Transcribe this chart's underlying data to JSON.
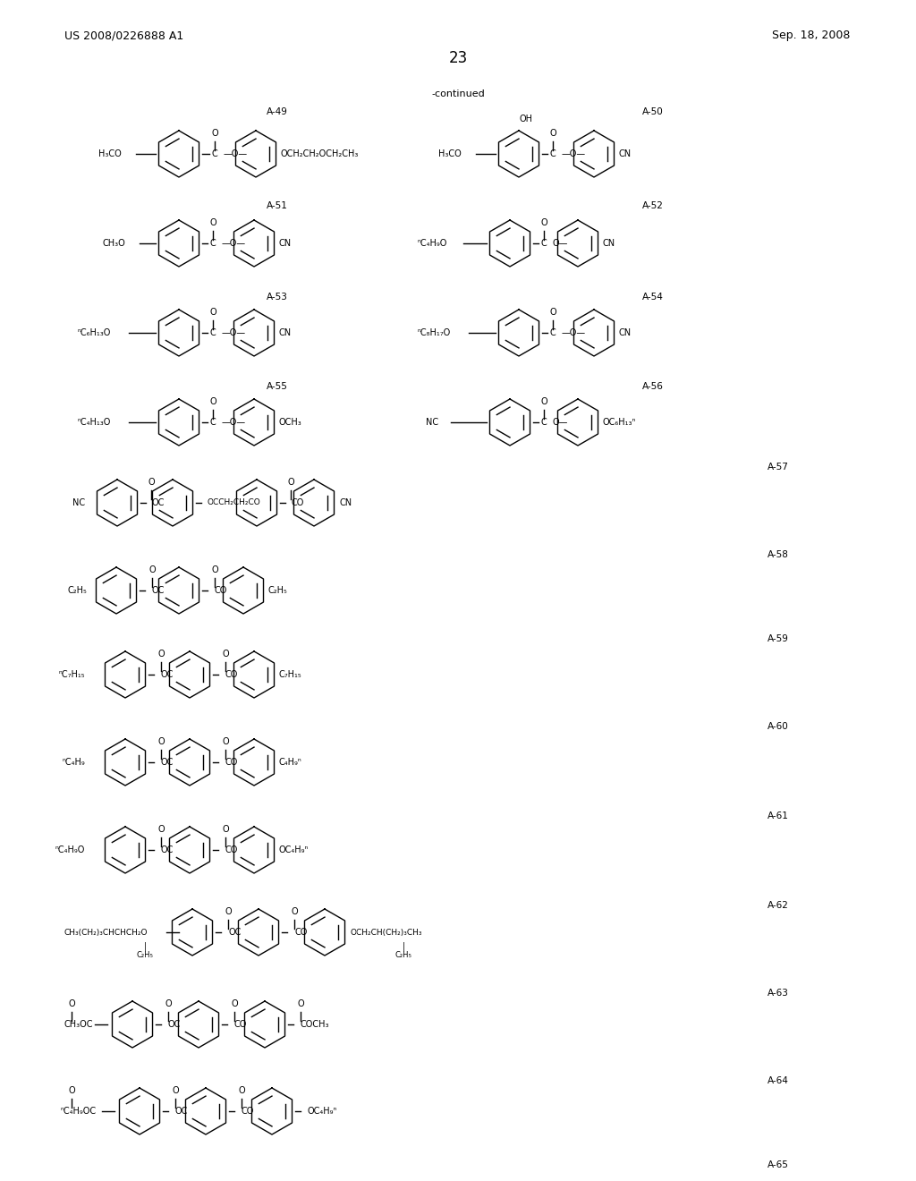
{
  "page_number": "23",
  "patent_number": "US 2008/0226888 A1",
  "patent_date": "Sep. 18, 2008",
  "continued_label": "-continued",
  "background_color": "#ffffff",
  "text_color": "#000000",
  "font_size_header": 10,
  "font_size_label": 8,
  "font_size_structure": 7
}
